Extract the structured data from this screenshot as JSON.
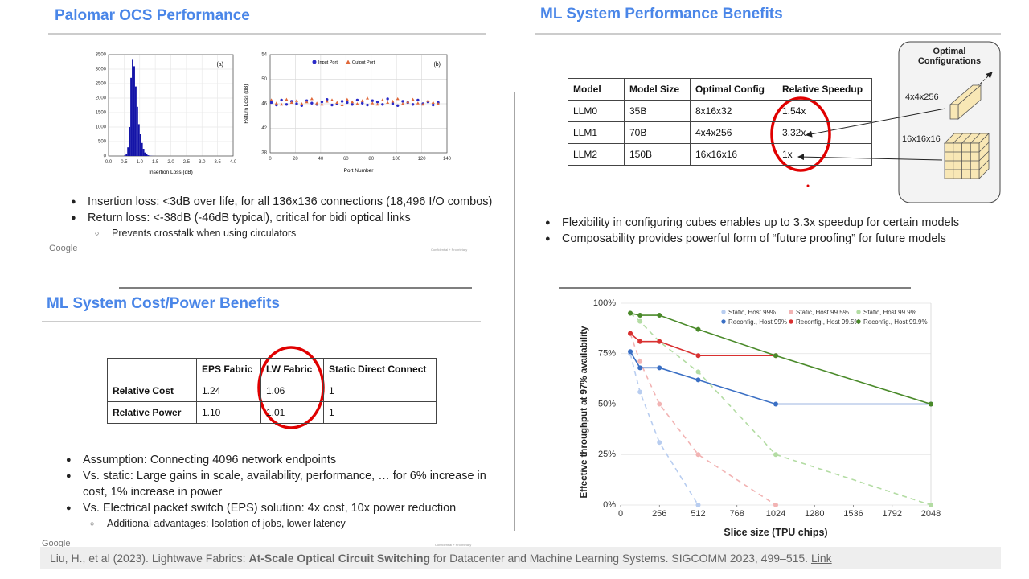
{
  "panels": {
    "ocs": {
      "title": "Palomar OCS Performance",
      "charts": [
        {
          "type": "histogram",
          "panel_label": "(a)",
          "x_label": "Insertion Loss (dB)",
          "color": "#1414a8",
          "bins": [
            0.5,
            0.55,
            0.6,
            0.65,
            0.7,
            0.75,
            0.8,
            0.85,
            0.9,
            0.95,
            1.0,
            1.05,
            1.1,
            1.15,
            1.2,
            1.25,
            1.3,
            1.35,
            1.4,
            1.45,
            1.5
          ],
          "values": [
            20,
            80,
            300,
            1000,
            2700,
            3350,
            3100,
            2400,
            1700,
            1100,
            750,
            450,
            250,
            120,
            60,
            25,
            10,
            5,
            2,
            1
          ],
          "xlim": [
            0,
            4
          ],
          "xticks": [
            {
              "value": 0,
              "label": "0.0"
            },
            0.5,
            {
              "value": 1,
              "label": "1.0"
            },
            1.5,
            {
              "value": 2,
              "label": "2.0"
            },
            2.5,
            {
              "value": 3,
              "label": "3.0"
            },
            3.5,
            {
              "value": 4,
              "label": "4.0"
            }
          ],
          "ylim": [
            0,
            3500
          ],
          "yticks": [
            0,
            500,
            1000,
            1500,
            2000,
            2500,
            3000,
            3500
          ],
          "grid": true
        },
        {
          "type": "scatter",
          "panel_label": "(b)",
          "x_label": "Port Number",
          "y_label": "Return Loss (dB)",
          "x": [
            1,
            5,
            9,
            13,
            17,
            21,
            25,
            29,
            33,
            37,
            41,
            45,
            49,
            53,
            57,
            61,
            65,
            69,
            73,
            77,
            81,
            85,
            89,
            93,
            97,
            101,
            105,
            109,
            113,
            117,
            121,
            125,
            129,
            133
          ],
          "series": [
            {
              "name": "Input Port",
              "color": "#2a2ac8",
              "marker": "circle",
              "values": [
                46.2,
                45.8,
                46.6,
                45.9,
                46.4,
                46.0,
                45.7,
                46.5,
                46.1,
                45.9,
                46.3,
                46.7,
                45.8,
                46.0,
                46.4,
                46.2,
                45.9,
                46.6,
                46.1,
                45.8,
                46.5,
                46.3,
                45.9,
                46.8,
                46.0,
                45.7,
                46.4,
                46.2,
                45.9,
                46.6,
                46.0,
                46.3,
                45.8,
                46.2
              ]
            },
            {
              "name": "Output Port",
              "color": "#e0683a",
              "marker": "triangle",
              "values": [
                46.6,
                46.1,
                45.9,
                46.7,
                46.2,
                46.5,
                46.0,
                46.3,
                46.8,
                46.1,
                45.9,
                46.4,
                46.6,
                46.2,
                45.8,
                46.7,
                46.3,
                46.0,
                46.5,
                46.9,
                46.1,
                45.9,
                46.6,
                46.2,
                46.4,
                46.8,
                46.0,
                46.3,
                46.7,
                46.1,
                45.9,
                46.5,
                46.2,
                46.0
              ]
            }
          ],
          "xlim": [
            0,
            140
          ],
          "xticks": [
            0,
            20,
            40,
            60,
            80,
            100,
            120,
            140
          ],
          "ylim": [
            38,
            54
          ],
          "yticks": [
            38,
            42,
            46,
            50,
            54
          ],
          "grid": true
        }
      ],
      "bullets": [
        {
          "level": 1,
          "text": "Insertion loss: <3dB over life, for all 136x136 connections (18,496 I/O combos)"
        },
        {
          "level": 1,
          "text": "Return loss: <-38dB (-46dB typical), critical for bidi optical links"
        },
        {
          "level": 2,
          "text": "Prevents crosstalk when using circulators"
        }
      ],
      "logo": "Google",
      "footer": "Confidential + Proprietary"
    },
    "perf": {
      "title": "ML System Performance Benefits",
      "table": {
        "header": [
          "Model",
          "Model Size",
          "Optimal Config",
          "Relative Speedup"
        ],
        "rows": [
          [
            "LLM0",
            "35B",
            "8x16x32",
            "1.54x"
          ],
          [
            "LLM1",
            "70B",
            "4x4x256",
            "3.32x"
          ],
          [
            "LLM2",
            "150B",
            "16x16x16",
            "1x"
          ]
        ]
      },
      "diagram": {
        "title": "Optimal Configurations",
        "configs": [
          "4x4x256",
          "16x16x16"
        ]
      },
      "bullets": [
        {
          "level": 1,
          "text": "Flexibility in configuring cubes enables up to 3.3x speedup for certain models"
        },
        {
          "level": 1,
          "text": "Composability provides powerful form of “future proofing” for future models"
        }
      ]
    },
    "cost": {
      "title": "ML System Cost/Power Benefits",
      "table": {
        "header": [
          "EPS Fabric",
          "LW Fabric",
          "Static Direct Connect"
        ],
        "rows": [
          {
            "label": "Relative Cost",
            "cells": [
              "1.24",
              "1.06",
              "1"
            ]
          },
          {
            "label": "Relative Power",
            "cells": [
              "1.10",
              "1.01",
              "1"
            ]
          }
        ]
      },
      "bullets": [
        {
          "level": 1,
          "text": "Assumption: Connecting 4096 network endpoints"
        },
        {
          "level": 1,
          "text": "Vs. static: Large gains in scale, availability, performance, … for 6% increase in cost, 1% increase in power"
        },
        {
          "level": 1,
          "text": "Vs. Electrical packet switch (EPS) solution: 4x cost, 10x power reduction"
        },
        {
          "level": 2,
          "text": "Additional advantages: Isolation of jobs, lower latency"
        }
      ],
      "logo": "Google",
      "footer": "Confidential + Proprietary"
    },
    "throughput": {
      "chart": {
        "type": "line",
        "x_label": "Slice size (TPU chips)",
        "y_label": "Effective throughput at 97% availability",
        "x": [
          64,
          128,
          256,
          512,
          1024,
          2048
        ],
        "series": [
          {
            "name": "Static, Host 99%",
            "color": "#b8cdf0",
            "style": "dashed",
            "values": [
              75,
              56,
              31,
              0,
              null,
              null
            ]
          },
          {
            "name": "Static, Host 99.5%",
            "color": "#f2b3b3",
            "style": "dashed",
            "values": [
              85,
              71,
              50,
              25,
              0,
              null
            ]
          },
          {
            "name": "Static, Host 99.9%",
            "color": "#b3dca3",
            "style": "dashed",
            "values": [
              95,
              91,
              81,
              66,
              25,
              0
            ]
          },
          {
            "name": "Reconfig., Host 99%",
            "color": "#3a6fc4",
            "style": "solid",
            "values": [
              76,
              68,
              68,
              62,
              50,
              50
            ]
          },
          {
            "name": "Reconfig., Host 99.5%",
            "color": "#d93030",
            "style": "solid",
            "values": [
              85,
              81,
              81,
              74,
              74,
              null
            ]
          },
          {
            "name": "Reconfig., Host 99.9%",
            "color": "#4a8a2a",
            "style": "solid",
            "values": [
              95,
              94,
              94,
              87,
              74,
              50
            ]
          }
        ],
        "xlim": [
          0,
          2048
        ],
        "xticks": [
          0,
          256,
          512,
          768,
          1024,
          1280,
          1536,
          1792,
          2048
        ],
        "ylim": [
          0,
          100
        ],
        "yticks": [
          {
            "value": 0,
            "label": "0%"
          },
          {
            "value": 25,
            "label": "25%"
          },
          {
            "value": 50,
            "label": "50%"
          },
          {
            "value": 75,
            "label": "75%"
          },
          {
            "value": 100,
            "label": "100%"
          }
        ],
        "grid": true
      }
    }
  },
  "citation": {
    "parts": [
      {
        "style": "normal",
        "text": "Liu, H., et al (2023). Lightwave Fabrics: "
      },
      {
        "style": "bold",
        "text": "At-Scale Optical Circuit Switching"
      },
      {
        "style": "normal",
        "text": " for Datacenter and Machine Learning Systems. SIGCOMM 2023, 499–515. "
      },
      {
        "style": "link",
        "text": "Link"
      }
    ]
  }
}
